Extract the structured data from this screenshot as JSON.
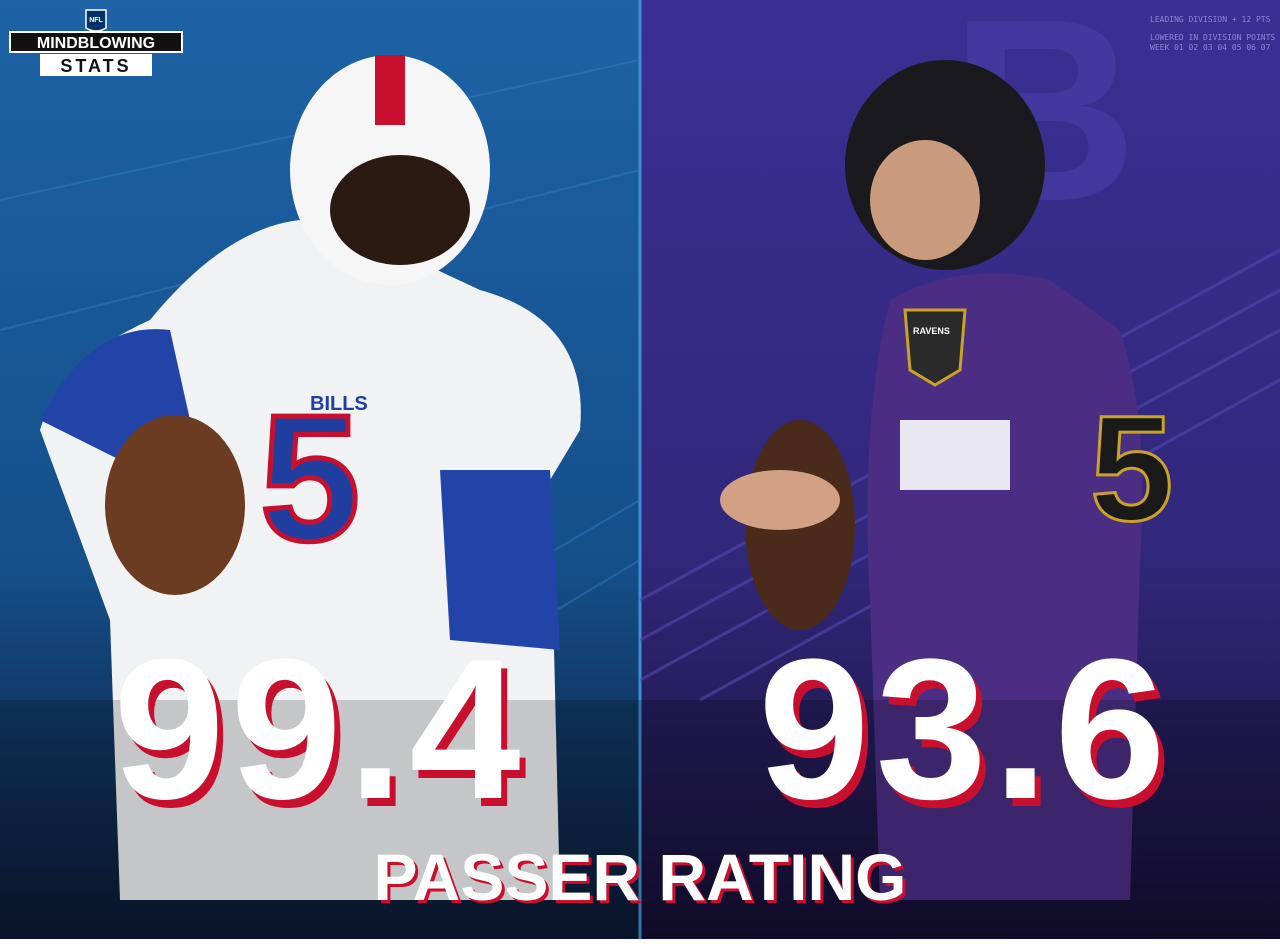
{
  "logo": {
    "league": "NFL",
    "line1": "MINDBLOWING",
    "line2": "STATS"
  },
  "left": {
    "team": "BILLS",
    "jersey": "5",
    "stat": "99.4"
  },
  "right": {
    "team": "RAVENS",
    "jersey": "5",
    "stat": "93.6"
  },
  "stat_label": "PASSER RATING",
  "decor": {
    "note1": "LEADING DIVISION + 12 PTS",
    "note2": "LOWERED IN DIVISION POINTS",
    "weeks": "WEEK 01 02 03 04 05 06 07"
  }
}
